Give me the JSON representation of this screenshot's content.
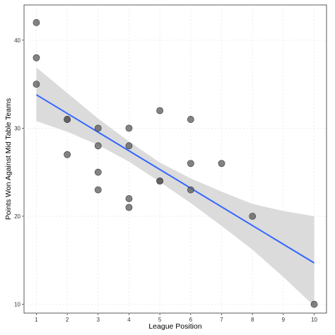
{
  "chart_data": {
    "type": "scatter",
    "xlabel": "League Position",
    "ylabel": "Points Won Against Mid Table Teams",
    "xlim": [
      0.6,
      10.4
    ],
    "ylim": [
      9,
      44
    ],
    "x_ticks": [
      1,
      2,
      3,
      4,
      5,
      6,
      7,
      8,
      9,
      10
    ],
    "y_ticks": [
      10,
      20,
      30,
      40
    ],
    "grid": true,
    "points": [
      {
        "x": 1,
        "y": 42
      },
      {
        "x": 1,
        "y": 38
      },
      {
        "x": 1,
        "y": 35
      },
      {
        "x": 2,
        "y": 31
      },
      {
        "x": 2,
        "y": 31
      },
      {
        "x": 2,
        "y": 27
      },
      {
        "x": 3,
        "y": 30
      },
      {
        "x": 3,
        "y": 28
      },
      {
        "x": 3,
        "y": 25
      },
      {
        "x": 3,
        "y": 23
      },
      {
        "x": 4,
        "y": 30
      },
      {
        "x": 4,
        "y": 28
      },
      {
        "x": 4,
        "y": 22
      },
      {
        "x": 4,
        "y": 21
      },
      {
        "x": 5,
        "y": 32
      },
      {
        "x": 5,
        "y": 24
      },
      {
        "x": 5,
        "y": 24
      },
      {
        "x": 6,
        "y": 31
      },
      {
        "x": 6,
        "y": 26
      },
      {
        "x": 6,
        "y": 23
      },
      {
        "x": 7,
        "y": 26
      },
      {
        "x": 8,
        "y": 20
      },
      {
        "x": 10,
        "y": 10
      }
    ],
    "trend_line": {
      "x": [
        1,
        10
      ],
      "y": [
        33.8,
        14.7
      ],
      "color": "#3366ff"
    },
    "confidence_band": {
      "x": [
        1,
        2,
        3,
        4,
        5,
        6,
        7,
        8,
        9,
        10
      ],
      "lower": [
        30.8,
        29.6,
        28.1,
        26.2,
        23.9,
        21.5,
        18.9,
        16.2,
        13.1,
        9.8
      ],
      "upper": [
        36.9,
        34.0,
        31.1,
        28.5,
        26.1,
        24.3,
        22.8,
        21.4,
        20.6,
        20.0
      ],
      "color": "#d9d9d9"
    },
    "point_color": "#595959"
  }
}
